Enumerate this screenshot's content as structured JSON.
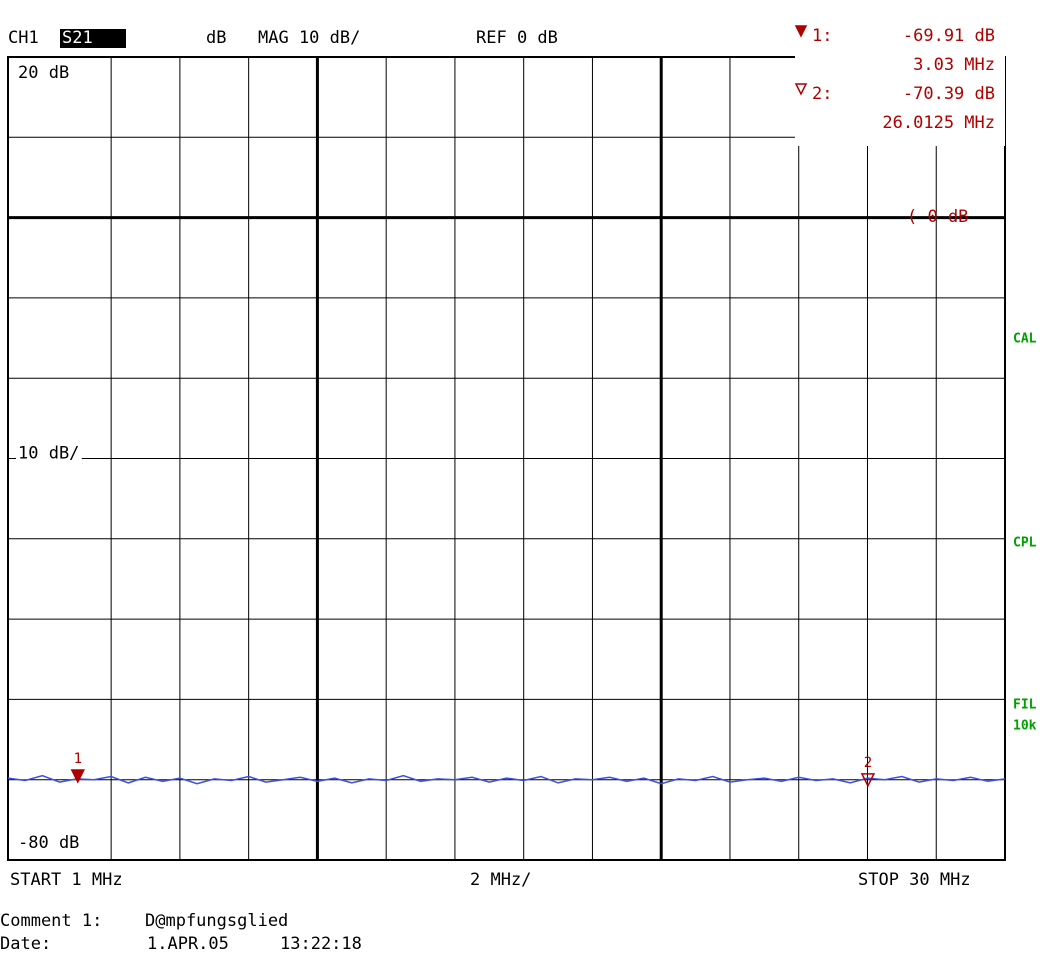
{
  "chart_data": {
    "type": "line",
    "channel": "CH1",
    "parameter": "S21",
    "format_unit": "dB",
    "scale": "MAG 10 dB/",
    "reference": "REF 0 dB",
    "ref_marker_label": "( 0 dB",
    "side_labels": [
      "CAL",
      "CPL",
      "FIL",
      "10k"
    ],
    "y_top_label": "20 dB",
    "y_scale_label": "10 dB/",
    "y_bottom_label": "-80 dB",
    "x_start": "START 1 MHz",
    "x_scale": "2 MHz/",
    "x_stop": "STOP 30 MHz",
    "comment_label": "Comment 1:",
    "comment": "D@mpfungsglied",
    "date_label": "Date:",
    "date": "1.APR.05",
    "time": "13:22:18",
    "xlim": [
      1,
      30
    ],
    "ylim": [
      -80,
      20
    ],
    "xticks": [
      1,
      4,
      6,
      8,
      10,
      12,
      14,
      16,
      18,
      20,
      22,
      24,
      26,
      28,
      30
    ],
    "yticks": [
      20,
      10,
      0,
      -10,
      -20,
      -30,
      -40,
      -50,
      -60,
      -70,
      -80
    ],
    "thick_x": [
      10,
      20
    ],
    "thick_y": [
      0
    ],
    "grid": true,
    "x": [
      1,
      1.5,
      2,
      2.5,
      3,
      3.5,
      4,
      4.5,
      5,
      5.5,
      6,
      6.5,
      7,
      7.5,
      8,
      8.5,
      9,
      9.5,
      10,
      10.5,
      11,
      11.5,
      12,
      12.5,
      13,
      13.5,
      14,
      14.5,
      15,
      15.5,
      16,
      16.5,
      17,
      17.5,
      18,
      18.5,
      19,
      19.5,
      20,
      20.5,
      21,
      21.5,
      22,
      22.5,
      23,
      23.5,
      24,
      24.5,
      25,
      25.5,
      26,
      26.5,
      27,
      27.5,
      28,
      28.5,
      29,
      29.5,
      30
    ],
    "series": [
      {
        "name": "S21",
        "color": "#3b4fe0",
        "values": [
          -69.8,
          -70.1,
          -69.5,
          -70.3,
          -69.9,
          -70.0,
          -69.6,
          -70.4,
          -69.7,
          -70.2,
          -69.8,
          -70.5,
          -69.9,
          -70.1,
          -69.6,
          -70.3,
          -70.0,
          -69.7,
          -70.2,
          -69.8,
          -70.4,
          -69.9,
          -70.1,
          -69.5,
          -70.2,
          -69.9,
          -70.0,
          -69.7,
          -70.3,
          -69.8,
          -70.1,
          -69.6,
          -70.4,
          -69.9,
          -70.0,
          -69.7,
          -70.2,
          -69.8,
          -70.5,
          -69.9,
          -70.1,
          -69.6,
          -70.3,
          -70.0,
          -69.8,
          -70.2,
          -69.7,
          -70.1,
          -69.9,
          -70.4,
          -69.8,
          -70.0,
          -69.6,
          -70.3,
          -69.9,
          -70.1,
          -69.7,
          -70.2,
          -69.9
        ]
      }
    ],
    "markers": [
      {
        "name": "1:",
        "tag": "1",
        "x": 3.03,
        "y": -69.91,
        "y_label": "-69.91 dB",
        "x_label": "3.03 MHz",
        "filled": true,
        "color": "#b00000"
      },
      {
        "name": "2:",
        "tag": "2",
        "x": 26.0125,
        "y": -70.39,
        "y_label": "-70.39 dB",
        "x_label": "26.0125 MHz",
        "filled": false,
        "color": "#b00000"
      }
    ]
  }
}
